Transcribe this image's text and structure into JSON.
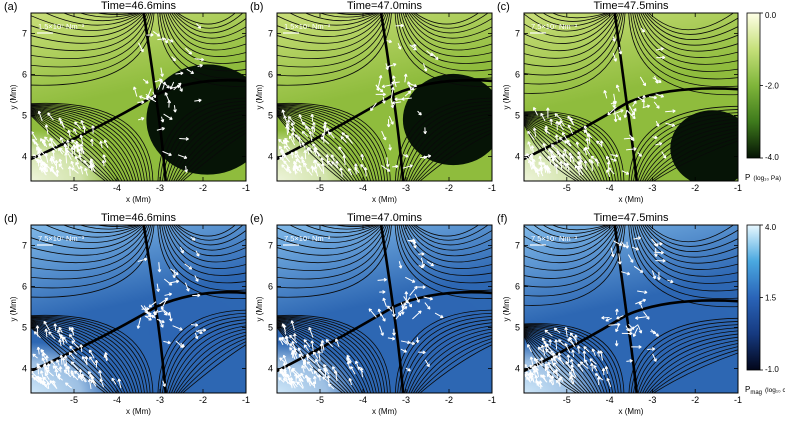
{
  "chart_data": [
    {
      "type": "heatmap",
      "label": "(a)",
      "time_label": "Time=46.6mins",
      "vector_scale": "1.5×10⁷ Nm⁻³",
      "xlabel": "x (Mm)",
      "ylabel": "y (Mm)",
      "xlim": [
        -6,
        -1
      ],
      "ylim": [
        3.4,
        7.5
      ],
      "xticks": [
        -5,
        -4,
        -3,
        -2,
        -1
      ],
      "yticks": [
        4,
        5,
        6,
        7
      ],
      "colormap": "green",
      "field": "P"
    },
    {
      "type": "heatmap",
      "label": "(b)",
      "time_label": "Time=47.0mins",
      "vector_scale": "1.5×10⁷ Nm⁻³",
      "xlabel": "x (Mm)",
      "ylabel": "y (Mm)",
      "xlim": [
        -6,
        -1
      ],
      "ylim": [
        3.4,
        7.5
      ],
      "xticks": [
        -5,
        -4,
        -3,
        -2,
        -1
      ],
      "yticks": [
        4,
        5,
        6,
        7
      ],
      "colormap": "green",
      "field": "P"
    },
    {
      "type": "heatmap",
      "label": "(c)",
      "time_label": "Time=47.5mins",
      "vector_scale": "7.5×10⁷ Nm⁻³",
      "xlabel": "x (Mm)",
      "ylabel": "y (Mm)",
      "xlim": [
        -6,
        -1
      ],
      "ylim": [
        3.4,
        7.5
      ],
      "xticks": [
        -5,
        -4,
        -3,
        -2,
        -1
      ],
      "yticks": [
        4,
        5,
        6,
        7
      ],
      "colormap": "green",
      "field": "P"
    },
    {
      "type": "heatmap",
      "label": "(d)",
      "time_label": "Time=46.6mins",
      "vector_scale": "7.5×10⁷ Nm⁻³",
      "xlabel": "x (Mm)",
      "ylabel": "y (Mm)",
      "xlim": [
        -6,
        -1
      ],
      "ylim": [
        3.4,
        7.5
      ],
      "xticks": [
        -5,
        -4,
        -3,
        -2,
        -1
      ],
      "yticks": [
        4,
        5,
        6,
        7
      ],
      "colormap": "blue",
      "field": "Pmag"
    },
    {
      "type": "heatmap",
      "label": "(e)",
      "time_label": "Time=47.0mins",
      "vector_scale": "7.5×10⁷ Nm⁻³",
      "xlabel": "x (Mm)",
      "ylabel": "y (Mm)",
      "xlim": [
        -6,
        -1
      ],
      "ylim": [
        3.4,
        7.5
      ],
      "xticks": [
        -5,
        -4,
        -3,
        -2,
        -1
      ],
      "yticks": [
        4,
        5,
        6,
        7
      ],
      "colormap": "blue",
      "field": "Pmag"
    },
    {
      "type": "heatmap",
      "label": "(f)",
      "time_label": "Time=47.5mins",
      "vector_scale": "7.5×10⁷ Nm⁻³",
      "xlabel": "x (Mm)",
      "ylabel": "y (Mm)",
      "xlim": [
        -6,
        -1
      ],
      "ylim": [
        3.4,
        7.5
      ],
      "xticks": [
        -5,
        -4,
        -3,
        -2,
        -1
      ],
      "yticks": [
        4,
        5,
        6,
        7
      ],
      "colormap": "blue",
      "field": "Pmag"
    }
  ],
  "colorbars": {
    "green": {
      "ticks": [
        "0.0",
        "-2.0",
        "-4.0"
      ],
      "label": "P",
      "label_unit": "(log₁₀ Pa)",
      "colors": [
        "#ffffe6",
        "#c5e07a",
        "#7fb53a",
        "#3e7a1c",
        "#041204"
      ]
    },
    "blue": {
      "ticks": [
        "4.0",
        "1.5",
        "-1.0"
      ],
      "label": "P",
      "label_sub": "mag",
      "label_unit": "(log₁₀ c⁰)",
      "colors": [
        "#e8f8ff",
        "#4aa8e0",
        "#2a64b8",
        "#163a80",
        "#02061a"
      ]
    }
  },
  "theme": {
    "green": {
      "base": "#8fbc3d",
      "upper": "#c8de78",
      "dark": "#061406",
      "bottom": "#eef4da"
    },
    "blue": {
      "base": "#2d67b3",
      "upper": "#7fb8e8",
      "dark": "#0a1a4a",
      "bottom": "#cde6f8"
    }
  }
}
